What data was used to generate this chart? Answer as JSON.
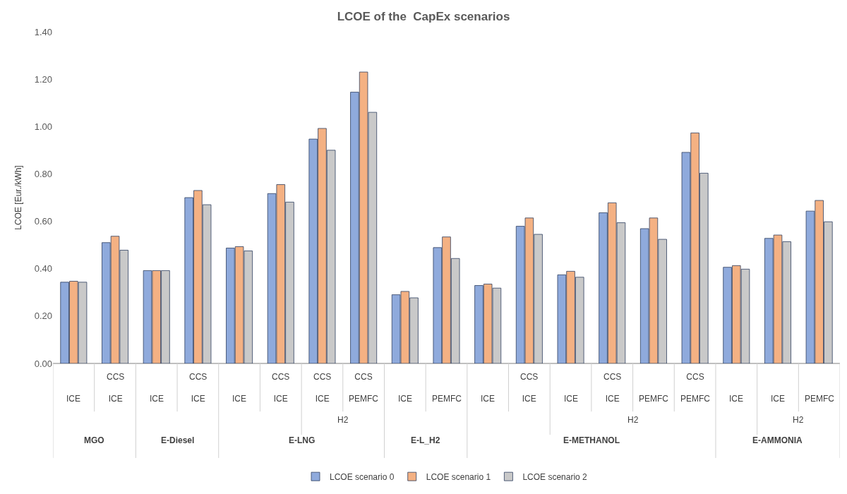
{
  "chart_data": {
    "type": "bar",
    "title": "LCOE of the  CapEx scenarios",
    "ylabel": "LCOE [Eur./kWh]",
    "categories": [
      "ICE",
      "CCS\nICE",
      "ICE",
      "CCS\nICE",
      "ICE",
      "CCS\nICE",
      "CCS\nICE",
      "CCS\nPEMFC",
      "ICE",
      "PEMFC",
      "ICE",
      "CCS\nICE",
      "ICE",
      "CCS\nICE",
      "PEMFC",
      "CCS\nPEMFC",
      "ICE",
      "ICE",
      "PEMFC"
    ],
    "annotations": [
      "H2",
      "H2",
      "H2",
      "MGO",
      "E-Diesel",
      "E-LNG",
      "E-L_H2",
      "E-METHANOL",
      "E-AMMONIA"
    ],
    "series": [
      {
        "name": "LCOE scenario 0",
        "color": "#8faadc",
        "values": [
          0.343,
          0.51,
          0.392,
          0.7,
          0.487,
          0.717,
          0.947,
          1.145,
          0.29,
          0.489,
          0.329,
          0.579,
          0.374,
          0.636,
          0.569,
          0.891,
          0.406,
          0.528,
          0.643
        ]
      },
      {
        "name": "LCOE scenario 1",
        "color": "#f4b183",
        "values": [
          0.347,
          0.537,
          0.392,
          0.73,
          0.493,
          0.755,
          0.992,
          1.23,
          0.304,
          0.534,
          0.335,
          0.614,
          0.389,
          0.678,
          0.614,
          0.973,
          0.413,
          0.542,
          0.688
        ]
      },
      {
        "name": "LCOE scenario 2",
        "color": "#c9c9c9",
        "values": [
          0.343,
          0.478,
          0.392,
          0.67,
          0.475,
          0.681,
          0.9,
          1.06,
          0.277,
          0.443,
          0.318,
          0.545,
          0.364,
          0.594,
          0.524,
          0.803,
          0.398,
          0.514,
          0.598
        ]
      }
    ],
    "ylim": [
      0,
      1.4
    ],
    "yticks": [
      {
        "value": 0,
        "label": "0.00"
      },
      {
        "value": 0.2,
        "label": "0.20"
      },
      {
        "value": 0.4,
        "label": "0.40"
      },
      {
        "value": 0.6,
        "label": "0.60"
      },
      {
        "value": 0.8,
        "label": "0.80"
      },
      {
        "value": 1.0,
        "label": "1.00"
      },
      {
        "value": 1.2,
        "label": "1.20"
      },
      {
        "value": 1.4,
        "label": "1.40"
      }
    ],
    "grid": false,
    "legend": "bottom"
  }
}
